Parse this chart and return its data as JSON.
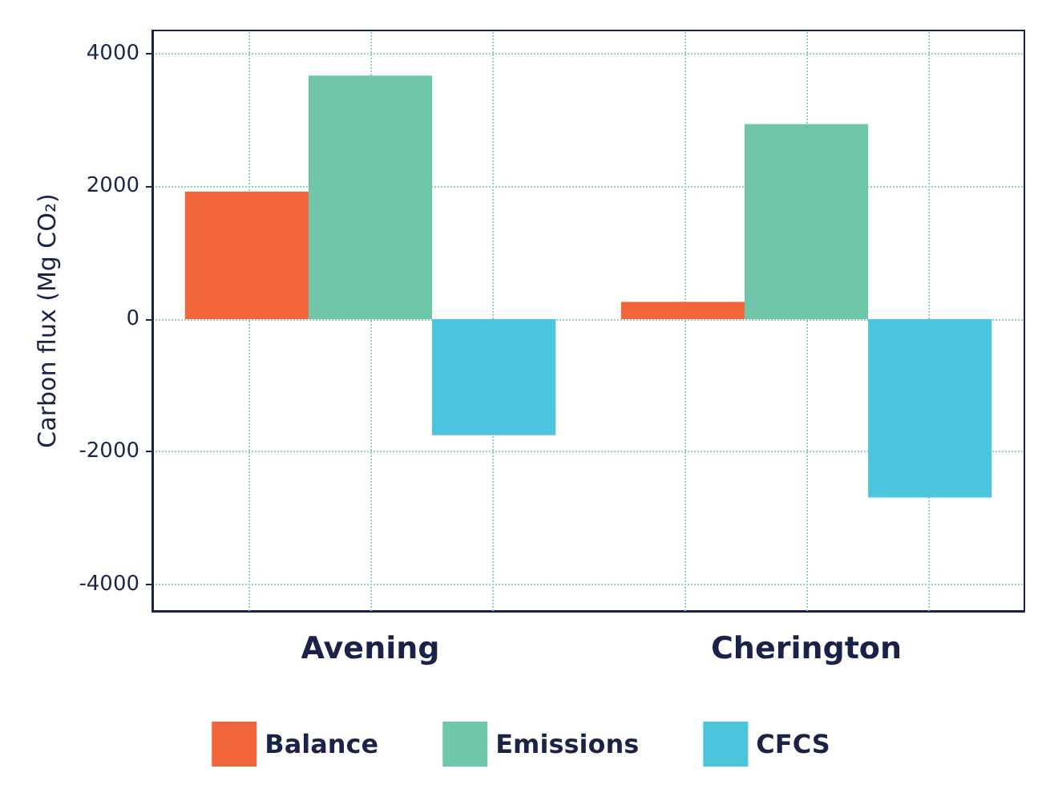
{
  "chart_data": {
    "type": "bar",
    "ylabel": "Carbon flux (Mg CO₂)",
    "categories": [
      "Avening",
      "Cherington"
    ],
    "series": [
      {
        "name": "Balance",
        "color": "#f0653a",
        "values": [
          1920,
          260
        ]
      },
      {
        "name": "Emissions",
        "color": "#6fc6ab",
        "values": [
          3670,
          2940
        ]
      },
      {
        "name": "CFCS",
        "color": "#4ec5df",
        "values": [
          -1750,
          -2690
        ]
      }
    ],
    "ylim": [
      -4400,
      4350
    ],
    "yticks": [
      -4000,
      -2000,
      0,
      2000,
      4000
    ],
    "grid": true,
    "legend": "bottom"
  }
}
